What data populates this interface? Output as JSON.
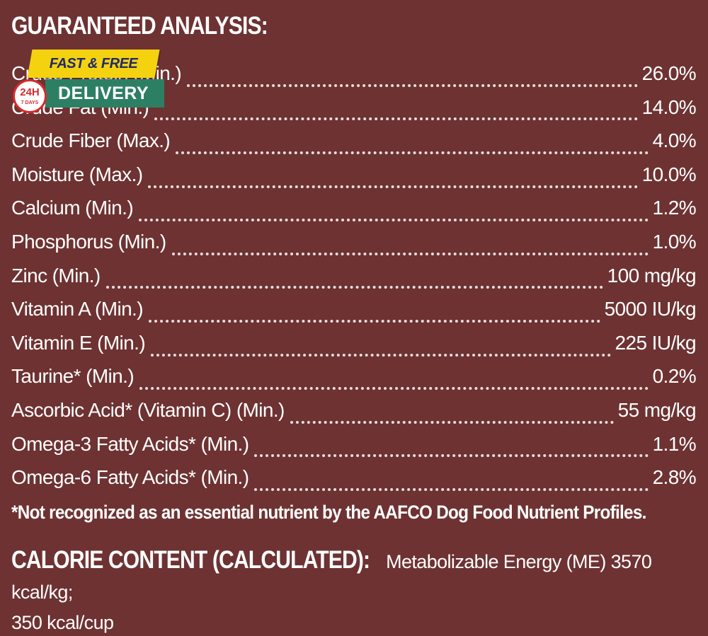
{
  "heading": "GUARANTEED ANALYSIS:",
  "rows": [
    {
      "label": "Crude Protein (Min.)",
      "value": "26.0%"
    },
    {
      "label": "Crude Fat (Min.)",
      "value": "14.0%"
    },
    {
      "label": "Crude Fiber (Max.)",
      "value": "4.0%"
    },
    {
      "label": "Moisture (Max.)",
      "value": "10.0%"
    },
    {
      "label": "Calcium (Min.)",
      "value": "1.2%"
    },
    {
      "label": "Phosphorus (Min.)",
      "value": "1.0%"
    },
    {
      "label": "Zinc (Min.)",
      "value": "100 mg/kg"
    },
    {
      "label": "Vitamin A (Min.)",
      "value": "5000 IU/kg"
    },
    {
      "label": "Vitamin E (Min.)",
      "value": "225 IU/kg"
    },
    {
      "label": "Taurine* (Min.)",
      "value": "0.2%"
    },
    {
      "label": "Ascorbic Acid* (Vitamin C) (Min.)",
      "value": "55 mg/kg"
    },
    {
      "label": "Omega-3 Fatty Acids* (Min.)",
      "value": "1.1%"
    },
    {
      "label": "Omega-6 Fatty Acids* (Min.)",
      "value": "2.8%"
    }
  ],
  "footnote": "*Not recognized as an essential nutrient by the AAFCO Dog Food Nutrient Profiles.",
  "calorie": {
    "title": "CALORIE CONTENT (CALCULATED):",
    "line1": "Metabolizable Energy (ME) 3570 kcal/kg;",
    "line2": "350 kcal/cup"
  },
  "badge": {
    "top_text": "FAST & FREE",
    "main_text": "DELIVERY",
    "circle_big": "24H",
    "circle_small": "7 DAYS"
  },
  "colors": {
    "background": "#6e3232",
    "text": "#ffffff",
    "badge_yellow": "#f5d20f",
    "badge_green": "#2d7f63",
    "badge_red": "#d72a2a"
  }
}
